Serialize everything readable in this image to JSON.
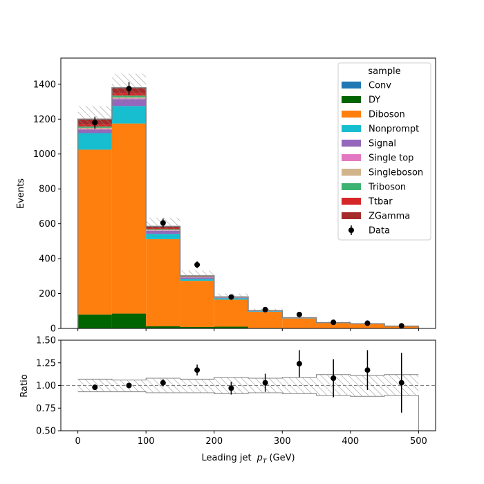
{
  "chart_data": {
    "type": "bar",
    "stacked": true,
    "bin_edges": [
      0,
      50,
      100,
      150,
      200,
      250,
      300,
      350,
      400,
      450,
      500
    ],
    "xlabel_text": "Leading jet",
    "xlabel_symbol": "p",
    "xlabel_subscript": "T",
    "xlabel_unit": "(GeV)",
    "ylabel": "Events",
    "ylim": [
      0,
      1550
    ],
    "xlim": [
      -25,
      525
    ],
    "xticks": [
      0,
      100,
      200,
      300,
      400,
      500
    ],
    "yticks": [
      0,
      200,
      400,
      600,
      800,
      1000,
      1200,
      1400
    ],
    "legend_title": "sample",
    "legend_position": "top-right",
    "series": [
      {
        "name": "Conv",
        "color": "#1f77b4",
        "values": [
          0,
          0,
          0,
          0,
          0,
          0,
          0,
          0,
          0,
          0
        ]
      },
      {
        "name": "DY",
        "color": "#006400",
        "values": [
          80,
          85,
          12,
          8,
          10,
          3,
          2,
          1,
          1,
          0
        ]
      },
      {
        "name": "Diboson",
        "color": "#ff7f0e",
        "values": [
          945,
          1090,
          500,
          265,
          155,
          92,
          55,
          30,
          24,
          12
        ]
      },
      {
        "name": "Nonprompt",
        "color": "#17becf",
        "values": [
          95,
          100,
          30,
          10,
          8,
          3,
          2,
          1,
          1,
          0.5
        ]
      },
      {
        "name": "Signal",
        "color": "#9467bd",
        "values": [
          20,
          40,
          18,
          9,
          3,
          2,
          1,
          0.5,
          0.3,
          0.2
        ]
      },
      {
        "name": "Single top",
        "color": "#e377c2",
        "values": [
          4,
          4,
          2,
          1,
          0.5,
          0.3,
          0.2,
          0.1,
          0.1,
          0.1
        ]
      },
      {
        "name": "Singleboson",
        "color": "#d2b48c",
        "values": [
          6,
          6,
          3,
          1,
          0.5,
          0.3,
          0.2,
          0.1,
          0.1,
          0.1
        ]
      },
      {
        "name": "Triboson",
        "color": "#3cb371",
        "values": [
          8,
          10,
          4,
          2,
          1,
          0.5,
          0.3,
          0.2,
          0.1,
          0.1
        ]
      },
      {
        "name": "Ttbar",
        "color": "#d62728",
        "values": [
          12,
          14,
          4,
          2,
          1,
          0.5,
          0.3,
          0.2,
          0.1,
          0.1
        ]
      },
      {
        "name": "ZGamma",
        "color": "#a52a2a",
        "values": [
          30,
          31,
          12,
          4,
          2,
          1,
          0.5,
          0.3,
          0.2,
          0.1
        ]
      }
    ],
    "uncertainty_band": {
      "low": [
        1130,
        1300,
        545,
        282,
        171,
        95,
        57,
        30,
        24,
        12
      ],
      "high": [
        1275,
        1460,
        635,
        332,
        200,
        113,
        67,
        40,
        32,
        17
      ]
    },
    "data_series": {
      "name": "Data",
      "color": "#000000",
      "x": [
        25,
        75,
        125,
        175,
        225,
        275,
        325,
        375,
        425,
        475
      ],
      "y": [
        1180,
        1375,
        605,
        365,
        180,
        108,
        80,
        35,
        30,
        15
      ],
      "yerr": [
        34,
        37,
        25,
        19,
        13,
        10,
        9,
        6,
        5.5,
        4
      ]
    },
    "ratio_panel": {
      "ylabel": "Ratio",
      "ylim": [
        0.5,
        1.5
      ],
      "yticks": [
        "0.50",
        "0.75",
        "1.00",
        "1.25",
        "1.50"
      ],
      "reference_line": 1.0,
      "band_low": [
        0.93,
        0.93,
        0.92,
        0.92,
        0.91,
        0.92,
        0.91,
        0.89,
        0.88,
        0.89
      ],
      "band_high": [
        1.07,
        1.06,
        1.08,
        1.07,
        1.09,
        1.08,
        1.09,
        1.12,
        1.11,
        1.12
      ],
      "points": [
        0.98,
        1.0,
        1.03,
        1.17,
        0.97,
        1.03,
        1.24,
        1.08,
        1.17,
        1.03
      ],
      "errors": [
        0.03,
        0.03,
        0.04,
        0.06,
        0.07,
        0.1,
        0.15,
        0.21,
        0.22,
        0.33
      ]
    }
  }
}
